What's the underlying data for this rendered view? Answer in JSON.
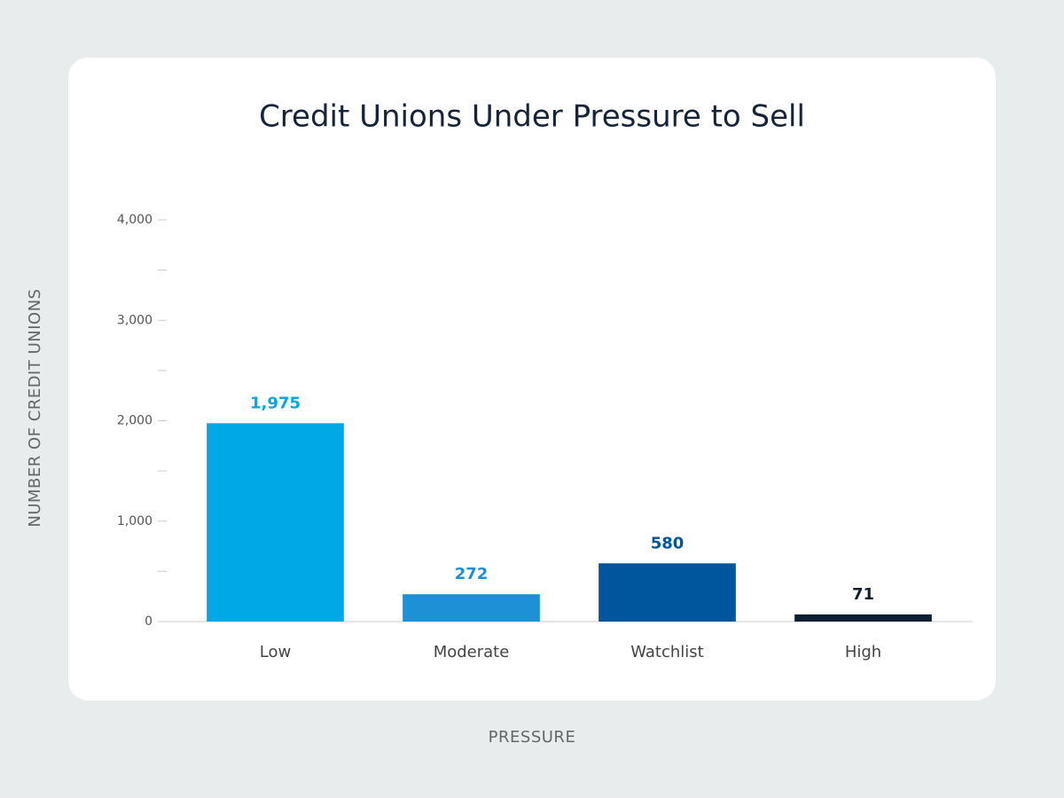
{
  "chart_data": {
    "type": "bar",
    "title": "Credit Unions Under Pressure to Sell",
    "x_label": "PRESSURE",
    "y_label": "NUMBER OF CREDIT UNIONS",
    "categories": [
      "Low",
      "Moderate",
      "Watchlist",
      "High"
    ],
    "values": [
      1975,
      272,
      580,
      71
    ],
    "value_labels": [
      "1,975",
      "272",
      "580",
      "71"
    ],
    "colors": [
      "#00a9e6",
      "#1e90d6",
      "#00569c",
      "#0e1f33"
    ],
    "ylim": [
      0,
      4000
    ],
    "yticks": [
      0,
      {
        "value": 1000,
        "label": "1,000"
      },
      {
        "value": 2000,
        "label": "2,000"
      },
      {
        "value": 3000,
        "label": "3,000"
      },
      {
        "value": 4000,
        "label": "4,000"
      }
    ],
    "yminorticks": [
      500,
      1500,
      2500,
      3500
    ]
  }
}
